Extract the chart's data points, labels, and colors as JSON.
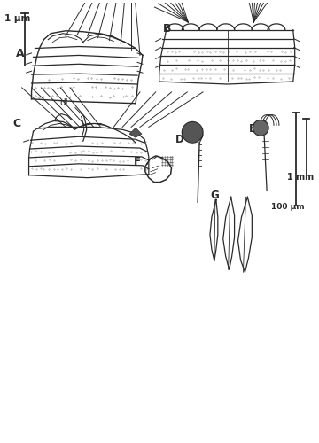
{
  "bg_color": "#ffffff",
  "line_color": "#2a2a2a",
  "scale1_text": "1 μm",
  "scale2_text": "1 mm",
  "scale3_text": "100 μm",
  "dl_text": "dl",
  "label_A": "A",
  "label_B": "B",
  "label_C": "C",
  "label_D": "D",
  "label_E": "E",
  "label_F": "F",
  "label_G": "G"
}
